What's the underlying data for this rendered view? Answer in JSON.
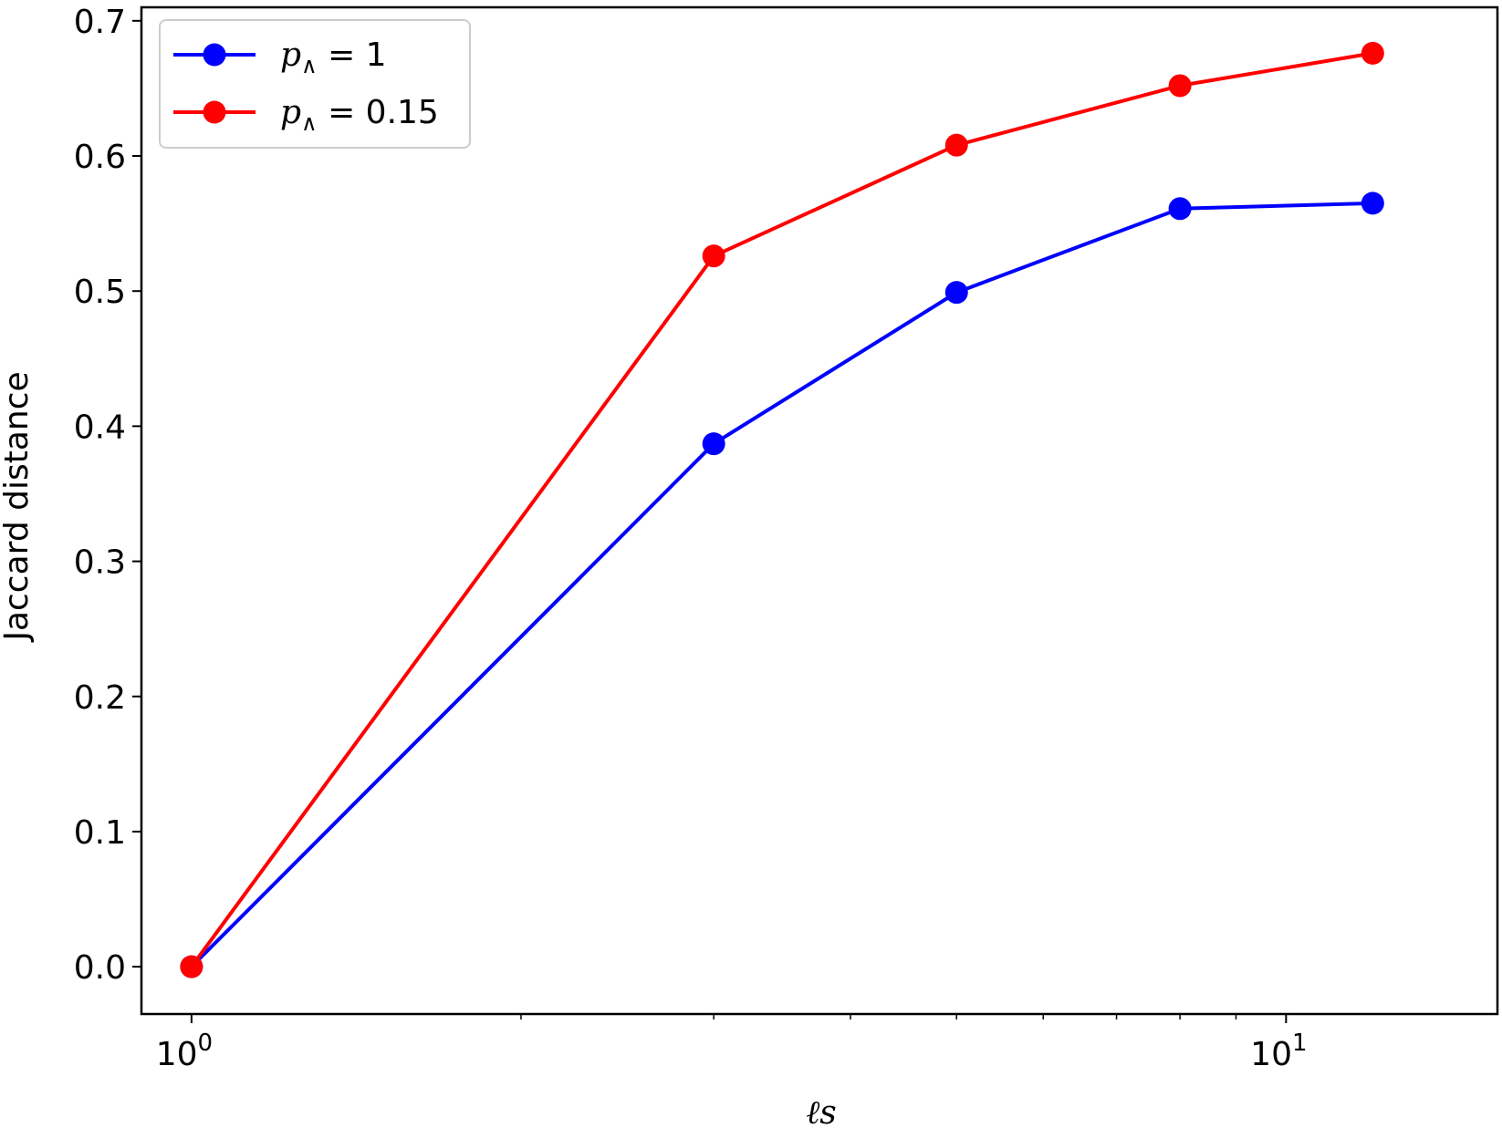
{
  "chart_data": {
    "type": "line",
    "xscale": "log",
    "xlim": [
      0.9,
      15.6
    ],
    "ylim": [
      -0.035,
      0.71
    ],
    "xlabel": "ℓs",
    "ylabel": "Jaccard distance",
    "xtick_labels": [
      {
        "base": "10",
        "exp": "0",
        "value": 1
      },
      {
        "base": "10",
        "exp": "1",
        "value": 10
      }
    ],
    "yticks": [
      0.0,
      0.1,
      0.2,
      0.3,
      0.4,
      0.5,
      0.6,
      0.7
    ],
    "ytick_labels": [
      "0.0",
      "0.1",
      "0.2",
      "0.3",
      "0.4",
      "0.5",
      "0.6",
      "0.7"
    ],
    "x": [
      1,
      3,
      5,
      8,
      12
    ],
    "series": [
      {
        "name": "p∧ = 1",
        "color": "#0000ff",
        "values": [
          0.0,
          0.387,
          0.499,
          0.561,
          0.565
        ]
      },
      {
        "name": "p∧ = 0.15",
        "color": "#ff0000",
        "values": [
          0.0,
          0.526,
          0.608,
          0.652,
          0.676
        ]
      }
    ],
    "legend": {
      "placement": "top-left",
      "entries": [
        {
          "symbol": "p",
          "subscript": "∧",
          "rest": " = 1"
        },
        {
          "symbol": "p",
          "subscript": "∧",
          "rest": " = 0.15"
        }
      ]
    },
    "grid": false
  }
}
